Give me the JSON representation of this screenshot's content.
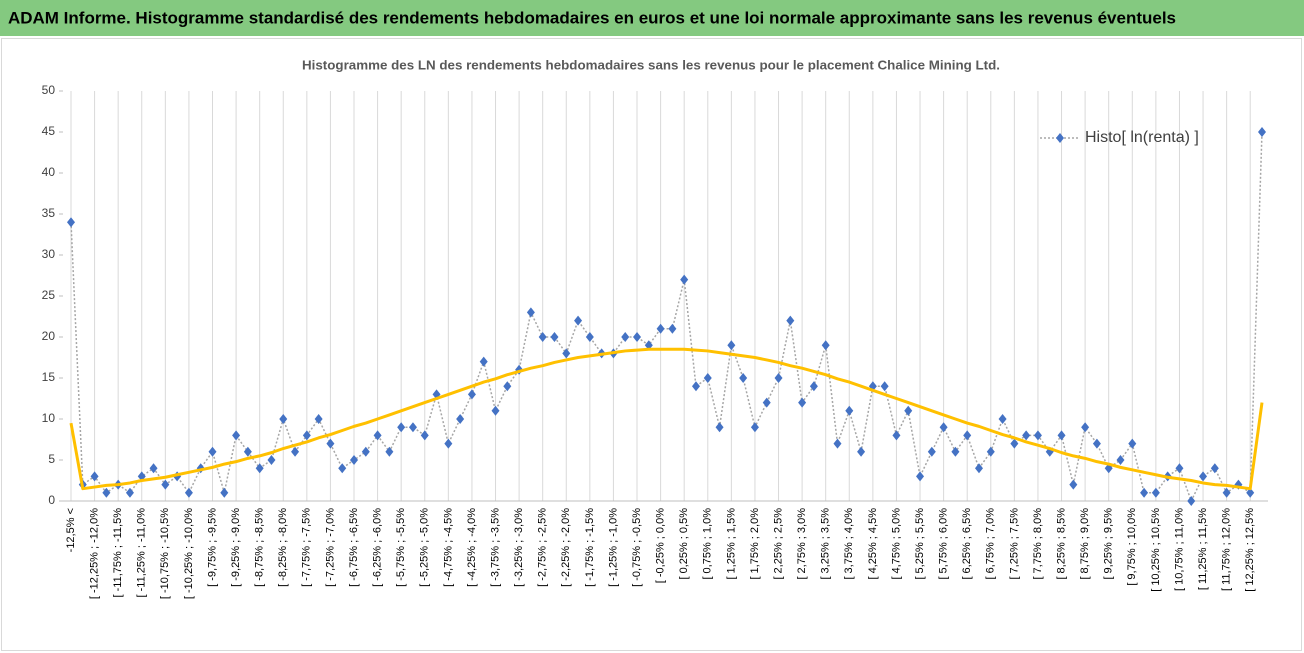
{
  "header": {
    "title": "ADAM Informe. Histogramme standardisé des rendements hebdomadaires en euros et une loi normale approximante sans les revenus éventuels"
  },
  "chart_data": {
    "type": "line",
    "title": "Histogramme des LN des rendements hebdomadaires sans les revenus pour le placement Chalice Mining Ltd.",
    "categories": [
      "-12,5% <",
      null,
      "[ -12,25% ; -12,0%",
      null,
      "[ -11,75% ; -11,5%",
      null,
      "[ -11,25% ; -11,0%",
      null,
      "[ -10,75% ; -10,5%",
      null,
      "[ -10,25% ; -10,0%",
      null,
      "[ -9,75% ; -9,5%",
      null,
      "[ -9,25% ; -9,0%",
      null,
      "[ -8,75% ; -8,5%",
      null,
      "[ -8,25% ; -8,0%",
      null,
      "[ -7,75% ; -7,5%",
      null,
      "[ -7,25% ; -7,0%",
      null,
      "[ -6,75% ; -6,5%",
      null,
      "[ -6,25% ; -6,0%",
      null,
      "[ -5,75% ; -5,5%",
      null,
      "[ -5,25% ; -5,0%",
      null,
      "[ -4,75% ; -4,5%",
      null,
      "[ -4,25% ; -4,0%",
      null,
      "[ -3,75% ; -3,5%",
      null,
      "[ -3,25% ; -3,0%",
      null,
      "[ -2,75% ; -2,5%",
      null,
      "[ -2,25% ; -2,0%",
      null,
      "[ -1,75% ; -1,5%",
      null,
      "[ -1,25% ; -1,0%",
      null,
      "[ -0,75% ; -0,5%",
      null,
      "[ -0,25% ; 0,0%",
      null,
      "[ 0,25% ; 0,5%",
      null,
      "[ 0,75% ; 1,0%",
      null,
      "[ 1,25% ; 1,5%",
      null,
      "[ 1,75% ; 2,0%",
      null,
      "[ 2,25% ; 2,5%",
      null,
      "[ 2,75% ; 3,0%",
      null,
      "[ 3,25% ; 3,5%",
      null,
      "[ 3,75% ; 4,0%",
      null,
      "[ 4,25% ; 4,5%",
      null,
      "[ 4,75% ; 5,0%",
      null,
      "[ 5,25% ; 5,5%",
      null,
      "[ 5,75% ; 6,0%",
      null,
      "[ 6,25% ; 6,5%",
      null,
      "[ 6,75% ; 7,0%",
      null,
      "[ 7,25% ; 7,5%",
      null,
      "[ 7,75% ; 8,0%",
      null,
      "[ 8,25% ; 8,5%",
      null,
      "[ 8,75% ; 9,0%",
      null,
      "[ 9,25% ; 9,5%",
      null,
      "[ 9,75% ; 10,0%",
      null,
      "[ 10,25% ; 10,5%",
      null,
      "[ 10,75% ; 11,0%",
      null,
      "[ 11,25% ; 11,5%",
      null,
      "[ 11,75% ; 12,0%",
      null,
      "[ 12,25% ; 12,5%",
      null
    ],
    "series": [
      {
        "name": "Histo[ ln(renta) ]",
        "color": "#4472c4",
        "values": [
          34,
          2,
          3,
          1,
          2,
          1,
          3,
          4,
          2,
          3,
          1,
          4,
          6,
          1,
          8,
          6,
          4,
          5,
          10,
          6,
          8,
          10,
          7,
          4,
          5,
          6,
          8,
          6,
          9,
          9,
          8,
          13,
          7,
          10,
          13,
          17,
          11,
          14,
          16,
          23,
          20,
          20,
          18,
          22,
          20,
          18,
          18,
          20,
          20,
          19,
          21,
          21,
          27,
          14,
          15,
          9,
          19,
          15,
          9,
          12,
          15,
          22,
          12,
          14,
          19,
          7,
          11,
          6,
          14,
          14,
          8,
          11,
          3,
          6,
          9,
          6,
          8,
          4,
          6,
          10,
          7,
          8,
          8,
          6,
          8,
          2,
          9,
          7,
          4,
          5,
          7,
          1,
          1,
          3,
          4,
          0,
          3,
          4,
          1,
          2,
          1,
          45
        ]
      },
      {
        "color": "#ffc000",
        "values": [
          9.5,
          1.5,
          1.7,
          1.9,
          2.0,
          2.2,
          2.5,
          2.7,
          2.9,
          3.2,
          3.5,
          3.8,
          4.1,
          4.5,
          4.8,
          5.2,
          5.5,
          5.9,
          6.4,
          6.8,
          7.2,
          7.7,
          8.1,
          8.6,
          9.1,
          9.5,
          10.0,
          10.5,
          11.0,
          11.5,
          12.0,
          12.5,
          13.0,
          13.5,
          14.0,
          14.5,
          14.9,
          15.4,
          15.8,
          16.2,
          16.5,
          16.9,
          17.2,
          17.5,
          17.7,
          17.9,
          18.1,
          18.3,
          18.4,
          18.5,
          18.5,
          18.5,
          18.5,
          18.4,
          18.3,
          18.1,
          17.9,
          17.7,
          17.5,
          17.2,
          16.9,
          16.5,
          16.2,
          15.8,
          15.4,
          14.9,
          14.5,
          14.0,
          13.5,
          13.0,
          12.5,
          12.0,
          11.5,
          11.0,
          10.5,
          10.0,
          9.5,
          9.1,
          8.6,
          8.1,
          7.7,
          7.2,
          6.8,
          6.4,
          5.9,
          5.5,
          5.2,
          4.8,
          4.5,
          4.1,
          3.8,
          3.5,
          3.2,
          2.9,
          2.7,
          2.5,
          2.2,
          2.0,
          1.9,
          1.7,
          1.5,
          12
        ]
      }
    ],
    "ylim": [
      0,
      50
    ],
    "yticks": [
      0,
      5,
      10,
      15,
      20,
      25,
      30,
      35,
      40,
      45,
      50
    ],
    "legend": "upper right"
  }
}
